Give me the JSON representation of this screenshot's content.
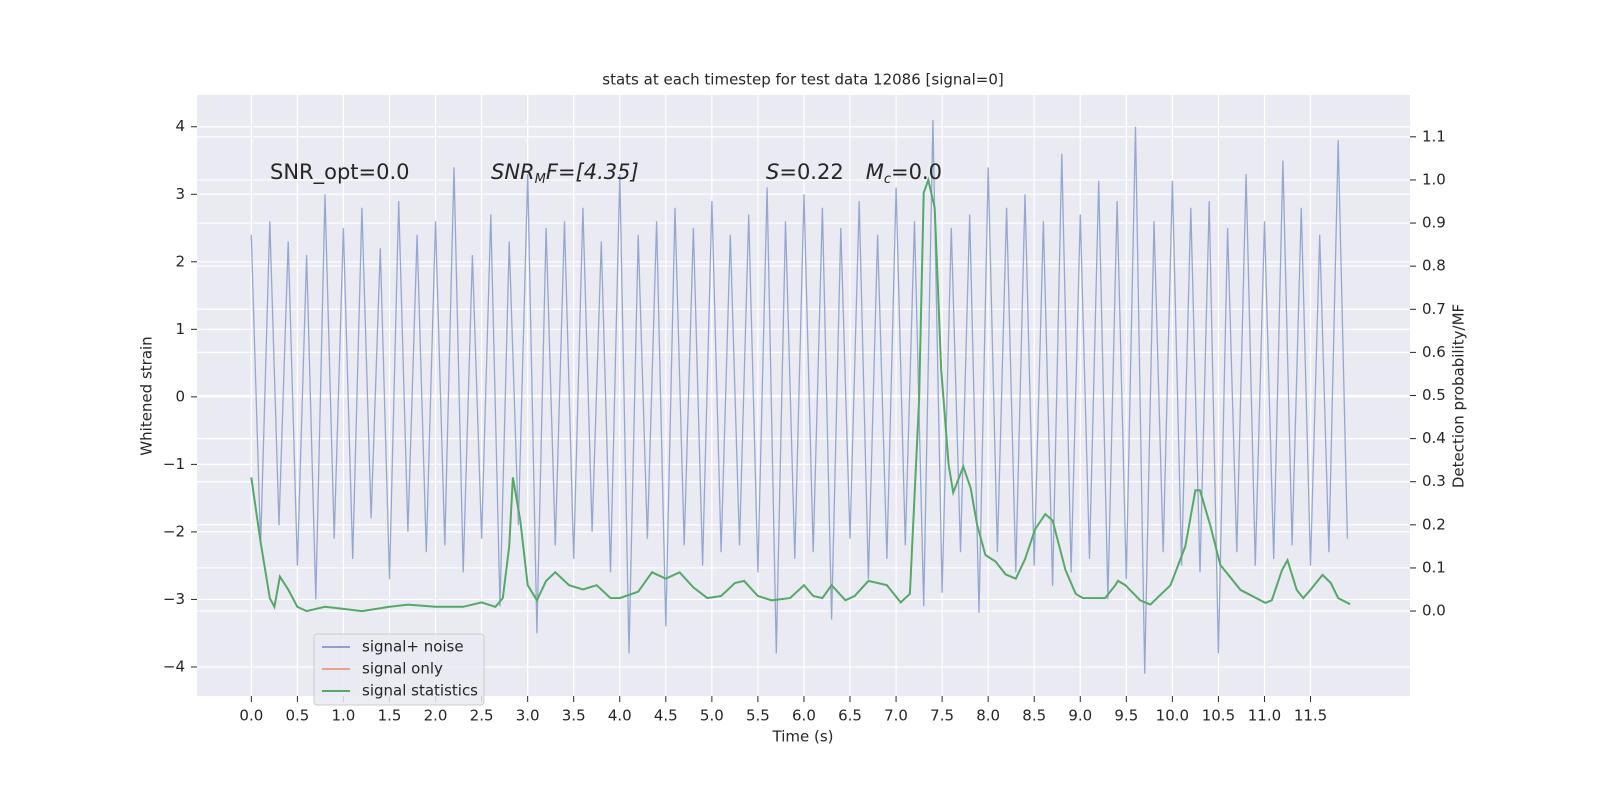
{
  "chart_data": {
    "type": "line",
    "title": "stats at each timestep for test data 12086 [signal=0]",
    "xlabel": "Time (s)",
    "ylabel": "Whitened strain",
    "y2label": "Detection probability/MF",
    "annotations": [
      [
        "SNR_opt=0.0"
      ],
      [
        "SNR",
        "M",
        "F=[4.35]"
      ],
      [
        "S",
        "=0.22",
        "M",
        "c",
        "=0.0"
      ]
    ],
    "xlim": [
      -0.59,
      12.58
    ],
    "ylim": [
      -4.43,
      4.47
    ],
    "y2lim": [
      -0.197,
      1.197
    ],
    "xticks": [
      {
        "value": 0,
        "label": "0.0"
      },
      0.5,
      {
        "value": 1,
        "label": "1.0"
      },
      1.5,
      {
        "value": 2,
        "label": "2.0"
      },
      2.5,
      {
        "value": 3,
        "label": "3.0"
      },
      3.5,
      {
        "value": 4,
        "label": "4.0"
      },
      4.5,
      {
        "value": 5,
        "label": "5.0"
      },
      5.5,
      {
        "value": 6,
        "label": "6.0"
      },
      6.5,
      {
        "value": 7,
        "label": "7.0"
      },
      7.5,
      {
        "value": 8,
        "label": "8.0"
      },
      8.5,
      {
        "value": 9,
        "label": "9.0"
      },
      9.5,
      {
        "value": 10,
        "label": "10.0"
      },
      10.5,
      {
        "value": 11,
        "label": "11.0"
      },
      11.5
    ],
    "yticks": [
      {
        "value": -4,
        "label": "−4"
      },
      {
        "value": -3,
        "label": "−3"
      },
      {
        "value": -2,
        "label": "−2"
      },
      {
        "value": -1,
        "label": "−1"
      },
      0,
      1,
      2,
      3,
      4
    ],
    "y2ticks": [
      {
        "value": 0,
        "label": "0.0"
      },
      0.1,
      0.2,
      0.3,
      0.4,
      0.5,
      0.6,
      0.7,
      0.8,
      0.9,
      {
        "value": 1,
        "label": "1.0"
      },
      1.1
    ],
    "grid": true,
    "legend": "lower left",
    "series": [
      {
        "name": "signal+ noise",
        "color": "#8da0cb",
        "axis": "y",
        "x": [
          0,
          0.1,
          0.2,
          0.3,
          0.4,
          0.5,
          0.6,
          0.7,
          0.8,
          0.9,
          1,
          1.1,
          1.2,
          1.3,
          1.4,
          1.5,
          1.6,
          1.7,
          1.8,
          1.9,
          2,
          2.1,
          2.2,
          2.3,
          2.4,
          2.5,
          2.6,
          2.7,
          2.8,
          2.9,
          3,
          3.1,
          3.2,
          3.3,
          3.4,
          3.5,
          3.6,
          3.7,
          3.8,
          3.9,
          4,
          4.1,
          4.2,
          4.3,
          4.4,
          4.5,
          4.6,
          4.7,
          4.8,
          4.9,
          5,
          5.1,
          5.2,
          5.3,
          5.4,
          5.5,
          5.6,
          5.7,
          5.8,
          5.9,
          6,
          6.1,
          6.2,
          6.3,
          6.4,
          6.5,
          6.6,
          6.7,
          6.8,
          6.9,
          7,
          7.1,
          7.2,
          7.3,
          7.4,
          7.5,
          7.6,
          7.7,
          7.8,
          7.9,
          8,
          8.1,
          8.2,
          8.3,
          8.4,
          8.5,
          8.6,
          8.7,
          8.8,
          8.9,
          9,
          9.1,
          9.2,
          9.3,
          9.4,
          9.5,
          9.6,
          9.7,
          9.8,
          9.9,
          10,
          10.1,
          10.2,
          10.3,
          10.4,
          10.5,
          10.6,
          10.7,
          10.8,
          10.9,
          11,
          11.1,
          11.2,
          11.3,
          11.4,
          11.5,
          11.6,
          11.7,
          11.8,
          11.9
        ],
        "values": [
          2.4,
          -2.2,
          2.6,
          -1.9,
          2.3,
          -2.5,
          2.1,
          -3.0,
          3.0,
          -2.1,
          2.5,
          -2.4,
          2.8,
          -1.8,
          2.2,
          -2.7,
          2.9,
          -2.0,
          2.4,
          -2.3,
          2.6,
          -2.2,
          3.4,
          -2.6,
          2.1,
          -2.1,
          2.7,
          -3.1,
          2.3,
          -1.9,
          3.3,
          -3.5,
          2.5,
          -2.2,
          2.6,
          -2.4,
          2.8,
          -2.0,
          2.3,
          -2.6,
          3.3,
          -3.8,
          2.4,
          -2.1,
          2.6,
          -3.4,
          2.8,
          -2.2,
          2.5,
          -2.5,
          2.9,
          -2.3,
          2.4,
          -2.2,
          2.7,
          -2.6,
          3.1,
          -3.8,
          2.6,
          -2.4,
          3.0,
          -2.3,
          2.8,
          -3.3,
          2.5,
          -2.1,
          2.9,
          -2.7,
          2.4,
          -2.4,
          3.1,
          -2.2,
          2.6,
          -3.1,
          4.1,
          -2.9,
          2.5,
          -2.3,
          2.7,
          -3.2,
          3.4,
          -2.3,
          2.8,
          -2.6,
          3.0,
          -2.5,
          2.6,
          -2.8,
          3.6,
          -2.6,
          2.7,
          -2.4,
          3.2,
          -3.0,
          2.9,
          -2.7,
          4.0,
          -4.1,
          2.6,
          -2.3,
          3.2,
          -2.5,
          2.8,
          -2.6,
          2.9,
          -3.8,
          2.5,
          -2.3,
          3.3,
          -2.5,
          2.6,
          -2.4,
          3.5,
          -2.2,
          2.8,
          -2.5,
          2.4,
          -2.3,
          3.8,
          -2.1
        ]
      },
      {
        "name": "signal only",
        "color": "#e8a48a",
        "axis": "y",
        "x": [],
        "values": []
      },
      {
        "name": "signal statistics",
        "color": "#55a868",
        "axis": "y2",
        "x": [
          0,
          0.1,
          0.2,
          0.25,
          0.31,
          0.4,
          0.5,
          0.6,
          0.8,
          1,
          1.2,
          1.5,
          1.7,
          2,
          2.3,
          2.5,
          2.65,
          2.73,
          2.8,
          2.84,
          2.92,
          3,
          3.1,
          3.2,
          3.3,
          3.45,
          3.6,
          3.75,
          3.9,
          4,
          4.2,
          4.35,
          4.5,
          4.65,
          4.8,
          4.95,
          5.1,
          5.25,
          5.35,
          5.5,
          5.65,
          5.85,
          6,
          6.1,
          6.2,
          6.3,
          6.45,
          6.55,
          6.7,
          6.9,
          7.05,
          7.15,
          7.25,
          7.3,
          7.35,
          7.42,
          7.49,
          7.57,
          7.62,
          7.73,
          7.81,
          7.88,
          7.97,
          8.08,
          8.19,
          8.3,
          8.4,
          8.51,
          8.62,
          8.7,
          8.84,
          8.95,
          9.03,
          9.16,
          9.27,
          9.38,
          9.41,
          9.49,
          9.65,
          9.76,
          9.98,
          10.14,
          10.25,
          10.3,
          10.41,
          10.52,
          10.74,
          11.01,
          11.08,
          11.19,
          11.25,
          11.35,
          11.42,
          11.5,
          11.63,
          11.72,
          11.8,
          11.93
        ],
        "values": [
          0.31,
          0.16,
          0.03,
          0.01,
          0.08,
          0.05,
          0.01,
          0.0,
          0.01,
          0.005,
          0.0,
          0.01,
          0.015,
          0.01,
          0.01,
          0.02,
          0.01,
          0.03,
          0.15,
          0.31,
          0.21,
          0.06,
          0.025,
          0.07,
          0.09,
          0.06,
          0.05,
          0.06,
          0.03,
          0.03,
          0.045,
          0.09,
          0.075,
          0.09,
          0.055,
          0.03,
          0.035,
          0.065,
          0.07,
          0.035,
          0.025,
          0.03,
          0.06,
          0.035,
          0.03,
          0.06,
          0.025,
          0.035,
          0.07,
          0.06,
          0.02,
          0.04,
          0.49,
          0.97,
          1.0,
          0.935,
          0.56,
          0.34,
          0.275,
          0.335,
          0.285,
          0.2,
          0.13,
          0.115,
          0.085,
          0.075,
          0.12,
          0.19,
          0.225,
          0.21,
          0.095,
          0.04,
          0.03,
          0.03,
          0.03,
          0.06,
          0.07,
          0.06,
          0.025,
          0.015,
          0.06,
          0.15,
          0.28,
          0.28,
          0.2,
          0.107,
          0.049,
          0.019,
          0.025,
          0.095,
          0.118,
          0.049,
          0.03,
          0.049,
          0.084,
          0.065,
          0.03,
          0.016
        ]
      }
    ]
  }
}
